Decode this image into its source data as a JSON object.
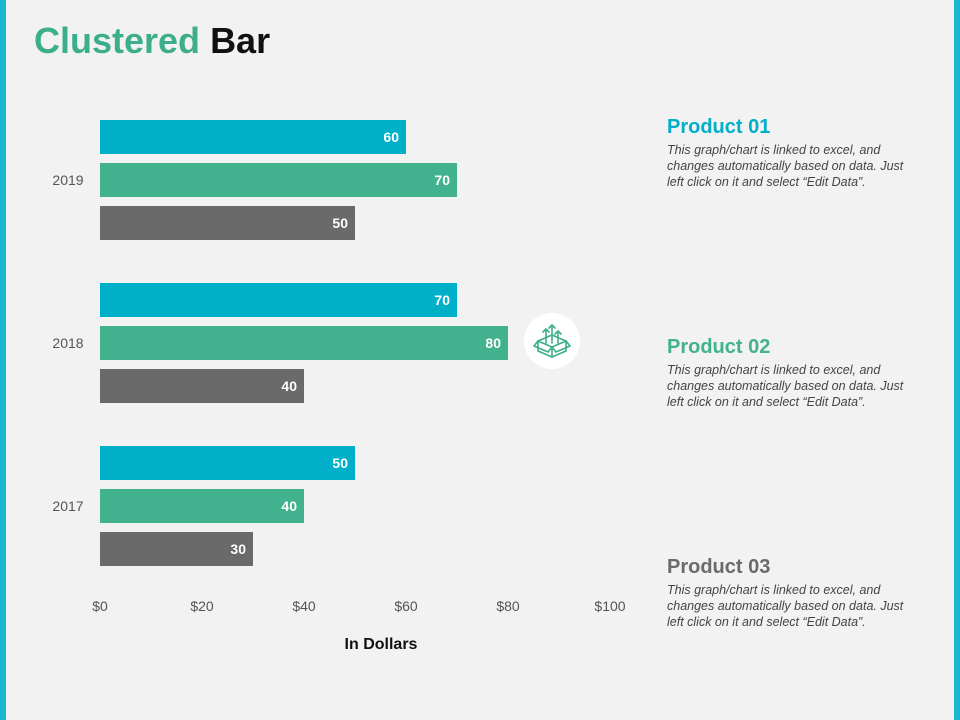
{
  "title": {
    "part1": "Clustered",
    "part2": "Bar"
  },
  "colors": {
    "accent": "#3dae8b",
    "product01": "#00afc8",
    "product02": "#41b28d",
    "product03": "#6b6a6b",
    "frame": "#19b7cf"
  },
  "chart_data": {
    "type": "bar",
    "orientation": "horizontal",
    "categories": [
      "2019",
      "2018",
      "2017"
    ],
    "series": [
      {
        "name": "Product 01",
        "values": [
          60,
          70,
          50
        ]
      },
      {
        "name": "Product 02",
        "values": [
          70,
          80,
          40
        ]
      },
      {
        "name": "Product 03",
        "values": [
          50,
          40,
          30
        ]
      }
    ],
    "xlim": [
      0,
      100
    ],
    "xticks": [
      "$0",
      "$20",
      "$40",
      "$60",
      "$80",
      "$100"
    ],
    "xlabel": "In Dollars",
    "ylabel": "",
    "grid": false
  },
  "products": [
    {
      "title": "Product 01",
      "desc": "This graph/chart is linked to excel, and changes automatically based on data. Just left click on it and select “Edit Data”."
    },
    {
      "title": "Product 02",
      "desc": "This graph/chart is linked to excel, and changes automatically based on data. Just left click on it and select “Edit Data”."
    },
    {
      "title": "Product 03",
      "desc": "This graph/chart is linked to excel, and changes automatically based on data. Just left click on it and select “Edit Data”."
    }
  ],
  "icon": {
    "name": "box-growth-icon"
  }
}
